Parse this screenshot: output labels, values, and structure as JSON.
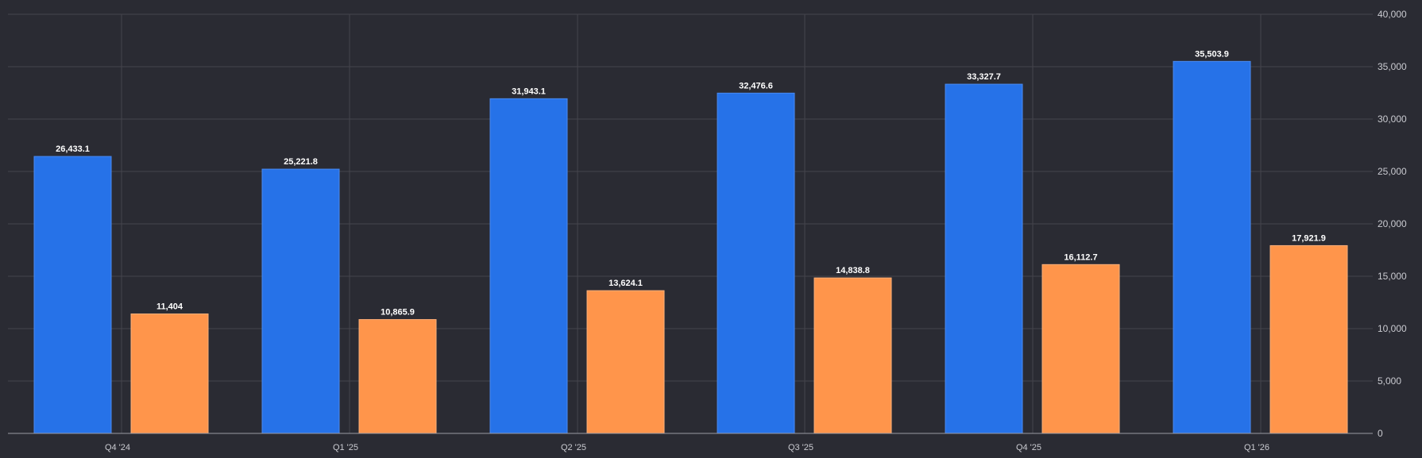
{
  "chart_data": {
    "type": "bar",
    "categories": [
      "Q4 '24",
      "Q1 '25",
      "Q2 '25",
      "Q3 '25",
      "Q4 '25",
      "Q1 '26"
    ],
    "series": [
      {
        "color": "#2672e8",
        "values": [
          26433.1,
          25221.8,
          31943.1,
          32476.6,
          33327.7,
          35503.9
        ],
        "labels": [
          "26,433.1",
          "25,221.8",
          "31,943.1",
          "32,476.6",
          "33,327.7",
          "35,503.9"
        ]
      },
      {
        "color": "#ff954b",
        "values": [
          11404,
          10865.9,
          13624.1,
          14838.8,
          16112.7,
          17921.9
        ],
        "labels": [
          "11,404",
          "10,865.9",
          "13,624.1",
          "14,838.8",
          "16,112.7",
          "17,921.9"
        ]
      }
    ],
    "y_ticks": [
      {
        "value": 0,
        "label": "0"
      },
      {
        "value": 5000,
        "label": "5,000"
      },
      {
        "value": 10000,
        "label": "10,000"
      },
      {
        "value": 15000,
        "label": "15,000"
      },
      {
        "value": 20000,
        "label": "20,000"
      },
      {
        "value": 25000,
        "label": "25,000"
      },
      {
        "value": 30000,
        "label": "30,000"
      },
      {
        "value": 35000,
        "label": "35,000"
      },
      {
        "value": 40000,
        "label": "40,000"
      }
    ],
    "ylim": [
      0,
      40000
    ],
    "y_axis_position": "right",
    "grid": true,
    "legend": "none",
    "title": "",
    "xlabel": "",
    "ylabel": ""
  }
}
